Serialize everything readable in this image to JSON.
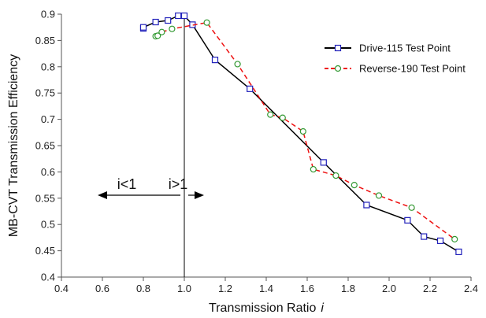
{
  "chart_data": {
    "type": "line",
    "xlabel": "Transmission Ratio",
    "xlabel_italic": "i",
    "ylabel": "MB-CVT Transmission Efficiency",
    "xlim": [
      0.4,
      2.4
    ],
    "ylim": [
      0.4,
      0.9
    ],
    "xticks": [
      0.4,
      0.6,
      0.8,
      1.0,
      1.2,
      1.4,
      1.6,
      1.8,
      2.0,
      2.2,
      2.4
    ],
    "xtick_labels": [
      "0.4",
      "0.6",
      "0.8",
      "1.0",
      "1.2",
      "1.4",
      "1.6",
      "1.8",
      "2.0",
      "2.2",
      "2.4"
    ],
    "yticks": [
      0.4,
      0.45,
      0.5,
      0.55,
      0.6,
      0.65,
      0.7,
      0.75,
      0.8,
      0.85,
      0.9
    ],
    "ytick_labels": [
      "0.4",
      "0.45",
      "0.5",
      "0.55",
      "0.6",
      "0.65",
      "0.7",
      "0.75",
      "0.8",
      "0.85",
      "0.9"
    ],
    "grid": false,
    "legend_position": "top-right",
    "series": [
      {
        "name": "Drive-115 Test Point",
        "color": "#000000",
        "marker": "square",
        "marker_color": "#2222bb",
        "line_style": "solid",
        "x": [
          0.8,
          0.8,
          0.86,
          0.92,
          0.97,
          1.0,
          1.04,
          1.15,
          1.32,
          1.68,
          1.89,
          2.09,
          2.17,
          2.25,
          2.34
        ],
        "y": [
          0.873,
          0.875,
          0.885,
          0.888,
          0.897,
          0.897,
          0.88,
          0.813,
          0.758,
          0.618,
          0.537,
          0.508,
          0.477,
          0.469,
          0.448
        ]
      },
      {
        "name": "Reverse-190 Test Point",
        "color": "#ee1111",
        "marker": "circle",
        "marker_color": "#339933",
        "line_style": "dashed",
        "x": [
          0.86,
          0.87,
          0.89,
          0.94,
          1.11,
          1.26,
          1.42,
          1.48,
          1.58,
          1.63,
          1.74,
          1.83,
          1.95,
          2.11,
          2.32
        ],
        "y": [
          0.858,
          0.859,
          0.866,
          0.872,
          0.884,
          0.805,
          0.709,
          0.703,
          0.677,
          0.605,
          0.593,
          0.575,
          0.555,
          0.532,
          0.472
        ]
      }
    ],
    "annotations": {
      "left_label": "i<1",
      "right_label": "i>1",
      "divider_x": 1.0
    }
  }
}
